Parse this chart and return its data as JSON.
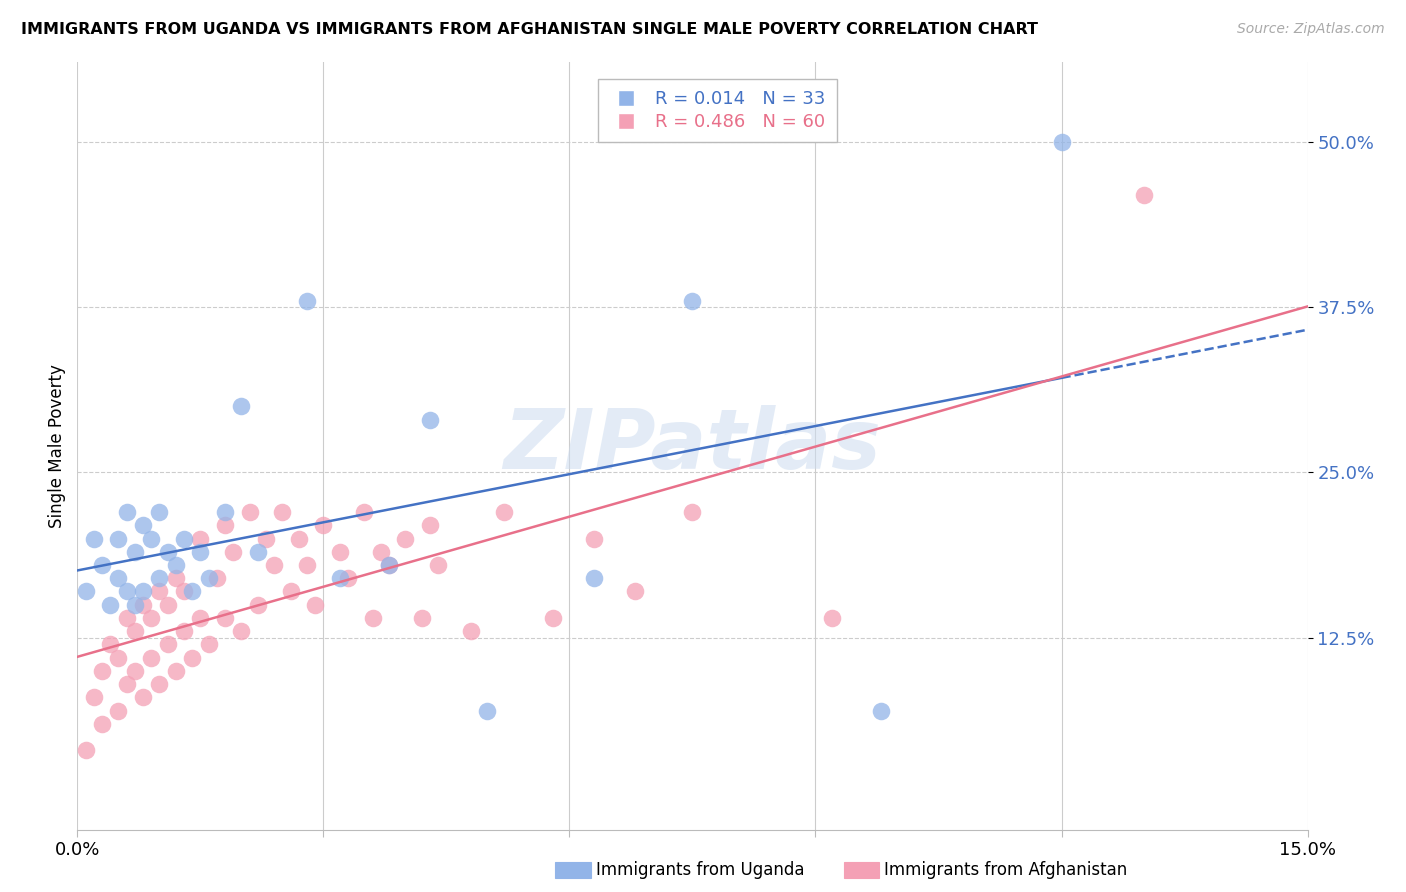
{
  "title": "IMMIGRANTS FROM UGANDA VS IMMIGRANTS FROM AFGHANISTAN SINGLE MALE POVERTY CORRELATION CHART",
  "source": "Source: ZipAtlas.com",
  "ylabel": "Single Male Poverty",
  "xlim": [
    0.0,
    0.15
  ],
  "ylim": [
    -0.02,
    0.56
  ],
  "ytick_values": [
    0.125,
    0.25,
    0.375,
    0.5
  ],
  "ytick_labels": [
    "12.5%",
    "25.0%",
    "37.5%",
    "50.0%"
  ],
  "xtick_values": [
    0.0,
    0.03,
    0.06,
    0.09,
    0.12,
    0.15
  ],
  "xtick_show_labels": [
    0.0,
    0.15
  ],
  "uganda_color": "#92b4e8",
  "afghanistan_color": "#f4a0b5",
  "uganda_line_color": "#4472c4",
  "afghanistan_line_color": "#e8708a",
  "watermark": "ZIPatlas",
  "legend_r_uganda": "R = 0.014",
  "legend_n_uganda": "N = 33",
  "legend_r_afghanistan": "R = 0.486",
  "legend_n_afghanistan": "N = 60",
  "uganda_points_x": [
    0.001,
    0.002,
    0.003,
    0.004,
    0.005,
    0.005,
    0.006,
    0.006,
    0.007,
    0.007,
    0.008,
    0.008,
    0.009,
    0.01,
    0.01,
    0.011,
    0.012,
    0.013,
    0.014,
    0.015,
    0.016,
    0.018,
    0.02,
    0.022,
    0.028,
    0.032,
    0.038,
    0.043,
    0.05,
    0.063,
    0.075,
    0.098,
    0.12
  ],
  "uganda_points_y": [
    0.16,
    0.2,
    0.18,
    0.15,
    0.2,
    0.17,
    0.22,
    0.16,
    0.19,
    0.15,
    0.21,
    0.16,
    0.2,
    0.17,
    0.22,
    0.19,
    0.18,
    0.2,
    0.16,
    0.19,
    0.17,
    0.22,
    0.3,
    0.19,
    0.38,
    0.17,
    0.18,
    0.29,
    0.07,
    0.17,
    0.38,
    0.07,
    0.5
  ],
  "afghanistan_points_x": [
    0.001,
    0.002,
    0.003,
    0.003,
    0.004,
    0.005,
    0.005,
    0.006,
    0.006,
    0.007,
    0.007,
    0.008,
    0.008,
    0.009,
    0.009,
    0.01,
    0.01,
    0.011,
    0.011,
    0.012,
    0.012,
    0.013,
    0.013,
    0.014,
    0.015,
    0.015,
    0.016,
    0.017,
    0.018,
    0.018,
    0.019,
    0.02,
    0.021,
    0.022,
    0.023,
    0.024,
    0.025,
    0.026,
    0.027,
    0.028,
    0.029,
    0.03,
    0.032,
    0.033,
    0.035,
    0.036,
    0.037,
    0.038,
    0.04,
    0.042,
    0.043,
    0.044,
    0.048,
    0.052,
    0.058,
    0.063,
    0.068,
    0.075,
    0.092,
    0.13
  ],
  "afghanistan_points_y": [
    0.04,
    0.08,
    0.06,
    0.1,
    0.12,
    0.07,
    0.11,
    0.09,
    0.14,
    0.1,
    0.13,
    0.08,
    0.15,
    0.11,
    0.14,
    0.09,
    0.16,
    0.12,
    0.15,
    0.1,
    0.17,
    0.13,
    0.16,
    0.11,
    0.14,
    0.2,
    0.12,
    0.17,
    0.21,
    0.14,
    0.19,
    0.13,
    0.22,
    0.15,
    0.2,
    0.18,
    0.22,
    0.16,
    0.2,
    0.18,
    0.15,
    0.21,
    0.19,
    0.17,
    0.22,
    0.14,
    0.19,
    0.18,
    0.2,
    0.14,
    0.21,
    0.18,
    0.13,
    0.22,
    0.14,
    0.2,
    0.16,
    0.22,
    0.14,
    0.46
  ]
}
